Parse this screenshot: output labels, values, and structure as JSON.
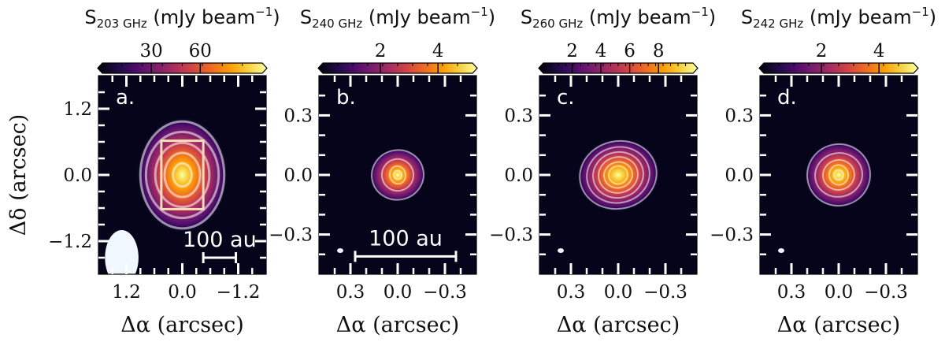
{
  "colors": {
    "background": "#05041a",
    "colormap": [
      "#000004",
      "#1b0c41",
      "#4a0c6b",
      "#781c6d",
      "#a52c60",
      "#cf4446",
      "#ed6925",
      "#fb9b06",
      "#f7d13d",
      "#fcffa4"
    ],
    "contour": "#ffffff",
    "scale": "#ffffff",
    "beam": "#f0f7ff",
    "box": "#f5ddb5"
  },
  "ylabel": "Δδ (arcsec)",
  "chart_data": [
    {
      "type": "heatmap",
      "panel": "a.",
      "colorbar": {
        "label": "S",
        "sub": "203 GHz",
        "unit": "(mJy beam",
        "sup": "−1",
        "close": ")",
        "ticks": [
          {
            "v": 30,
            "t": "30"
          },
          {
            "v": 60,
            "t": "60"
          }
        ],
        "range": [
          0,
          98
        ],
        "minor_count": 8
      },
      "xlabel": "Δα (arcsec)",
      "xlim": [
        1.8,
        -1.8
      ],
      "ylim": [
        -1.8,
        1.8
      ],
      "xticks": [
        {
          "v": 1.2,
          "t": "1.2"
        },
        {
          "v": 0.0,
          "t": "0.0"
        },
        {
          "v": -1.2,
          "t": "−1.2"
        }
      ],
      "yticks": [
        {
          "v": 1.2,
          "t": "1.2"
        },
        {
          "v": 0.0,
          "t": "0.0"
        },
        {
          "v": -1.2,
          "t": "−1.2"
        }
      ],
      "minor_step": 0.3,
      "source": {
        "x": 0.0,
        "y": 0.0,
        "sx": 0.62,
        "sy": 0.82,
        "peak": 1.0
      },
      "contours": [
        {
          "a": 0.9,
          "b": 0.97
        },
        {
          "a": 0.78,
          "b": 0.78
        },
        {
          "a": 0.58,
          "b": 0.58
        },
        {
          "a": 0.38,
          "b": 0.4
        },
        {
          "a": 0.2,
          "b": 0.21
        }
      ],
      "box": {
        "x1": 0.45,
        "x2": -0.45,
        "y1": 0.62,
        "y2": -0.62
      },
      "beam": {
        "x": 1.3,
        "y": -1.5,
        "a": 0.36,
        "b": 0.5
      },
      "scale_bar": {
        "label": "100 au",
        "x1": -0.45,
        "x2": -1.15,
        "y": -1.5
      }
    },
    {
      "type": "heatmap",
      "panel": "b.",
      "colorbar": {
        "label": "S",
        "sub": "240 GHz",
        "unit": "(mJy beam",
        "sup": "−1",
        "close": ")",
        "ticks": [
          {
            "v": 2,
            "t": "2"
          },
          {
            "v": 4,
            "t": "4"
          }
        ],
        "range": [
          0,
          5.2
        ],
        "minor_count": 10
      },
      "xlabel": "Δα (arcsec)",
      "xlim": [
        0.5,
        -0.5
      ],
      "ylim": [
        -0.5,
        0.5
      ],
      "xticks": [
        {
          "v": 0.3,
          "t": "0.3"
        },
        {
          "v": 0.0,
          "t": "0.0"
        },
        {
          "v": -0.3,
          "t": "−0.3"
        }
      ],
      "yticks": [
        {
          "v": 0.3,
          "t": "0.3"
        },
        {
          "v": 0.0,
          "t": "0.0"
        },
        {
          "v": -0.3,
          "t": "−0.3"
        }
      ],
      "minor_step": 0.1,
      "source": {
        "x": 0.0,
        "y": 0.0,
        "sx": 0.05,
        "sy": 0.04,
        "peak": 1.0
      },
      "contours": [
        {
          "a": 0.165,
          "b": 0.125
        },
        {
          "a": 0.1,
          "b": 0.08
        },
        {
          "a": 0.05,
          "b": 0.045
        },
        {
          "a": 0.025,
          "b": 0.022
        }
      ],
      "scale_bar": {
        "label": "100 au",
        "x1": 0.27,
        "x2": -0.37,
        "y": -0.41
      }
    },
    {
      "type": "heatmap",
      "panel": "c.",
      "colorbar": {
        "label": "S",
        "sub": "260 GHz",
        "unit": "(mJy beam",
        "sup": "−1",
        "close": ")",
        "ticks": [
          {
            "v": 2,
            "t": "2"
          },
          {
            "v": 4,
            "t": "4"
          },
          {
            "v": 6,
            "t": "6"
          },
          {
            "v": 8,
            "t": "8"
          }
        ],
        "range": [
          0,
          10.4
        ],
        "minor_count": 20
      },
      "xlabel": "Δα (arcsec)",
      "xlim": [
        0.5,
        -0.5
      ],
      "ylim": [
        -0.5,
        0.5
      ],
      "xticks": [
        {
          "v": 0.3,
          "t": "0.3"
        },
        {
          "v": 0.0,
          "t": "0.0"
        },
        {
          "v": -0.3,
          "t": "−0.3"
        }
      ],
      "yticks": [
        {
          "v": 0.3,
          "t": "0.3"
        },
        {
          "v": 0.0,
          "t": "0.0"
        },
        {
          "v": -0.3,
          "t": "−0.3"
        }
      ],
      "minor_step": 0.1,
      "source": {
        "x": 0.0,
        "y": 0.0,
        "sx": 0.09,
        "sy": 0.07,
        "peak": 1.0
      },
      "contours": [
        {
          "a": 0.245,
          "b": 0.17
        },
        {
          "a": 0.2,
          "b": 0.14
        },
        {
          "a": 0.16,
          "b": 0.115
        },
        {
          "a": 0.125,
          "b": 0.09
        },
        {
          "a": 0.09,
          "b": 0.065
        },
        {
          "a": 0.06,
          "b": 0.045
        }
      ]
    },
    {
      "type": "heatmap",
      "panel": "d.",
      "colorbar": {
        "label": "S",
        "sub": "242 GHz",
        "unit": "(mJy beam",
        "sup": "−1",
        "close": ")",
        "ticks": [
          {
            "v": 2,
            "t": "2"
          },
          {
            "v": 4,
            "t": "4"
          }
        ],
        "range": [
          0,
          5.2
        ],
        "minor_count": 10
      },
      "xlabel": "Δα (arcsec)",
      "xlim": [
        0.5,
        -0.5
      ],
      "ylim": [
        -0.5,
        0.5
      ],
      "xticks": [
        {
          "v": 0.3,
          "t": "0.3"
        },
        {
          "v": 0.0,
          "t": "0.0"
        },
        {
          "v": -0.3,
          "t": "−0.3"
        }
      ],
      "yticks": [
        {
          "v": 0.3,
          "t": "0.3"
        },
        {
          "v": 0.0,
          "t": "0.0"
        },
        {
          "v": -0.3,
          "t": "−0.3"
        }
      ],
      "minor_step": 0.1,
      "source": {
        "x": 0.0,
        "y": 0.0,
        "sx": 0.055,
        "sy": 0.045,
        "peak": 1.0
      },
      "contours": [
        {
          "a": 0.2,
          "b": 0.155
        },
        {
          "a": 0.15,
          "b": 0.11
        },
        {
          "a": 0.1,
          "b": 0.075
        },
        {
          "a": 0.06,
          "b": 0.05
        },
        {
          "a": 0.03,
          "b": 0.025
        }
      ]
    }
  ]
}
